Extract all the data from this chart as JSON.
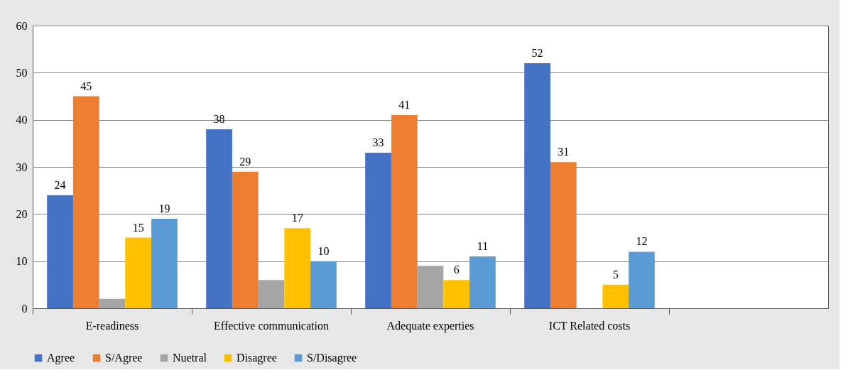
{
  "chart_data": {
    "type": "bar",
    "categories": [
      "E-readiness",
      "Effective communication",
      "Adequate experties",
      "ICT Related costs",
      null
    ],
    "series": [
      {
        "name": "Agree",
        "color": "#4472c4",
        "values": [
          24,
          38,
          33,
          52,
          null
        ],
        "value_labels": [
          "24",
          "38",
          "33",
          "52",
          null
        ]
      },
      {
        "name": "S/Agree",
        "color": "#ed7d31",
        "values": [
          45,
          29,
          41,
          31,
          null
        ],
        "value_labels": [
          "45",
          "29",
          "41",
          "31",
          null
        ]
      },
      {
        "name": "Nuetral",
        "color": "#a5a5a5",
        "values": [
          2,
          6,
          9,
          null,
          null
        ],
        "value_labels": [
          null,
          null,
          null,
          null,
          null
        ]
      },
      {
        "name": "Disagree",
        "color": "#ffc000",
        "values": [
          15,
          17,
          6,
          5,
          null
        ],
        "value_labels": [
          "15",
          "17",
          "6",
          "5",
          null
        ]
      },
      {
        "name": "S/Disagree",
        "color": "#5b9bd5",
        "values": [
          19,
          10,
          11,
          12,
          null
        ],
        "value_labels": [
          "19",
          "10",
          "11",
          "12",
          null
        ]
      }
    ],
    "ylim": [
      0,
      60
    ],
    "yticks": [
      0,
      10,
      20,
      30,
      40,
      50,
      60
    ],
    "grid": "y",
    "legend": "bottom"
  }
}
